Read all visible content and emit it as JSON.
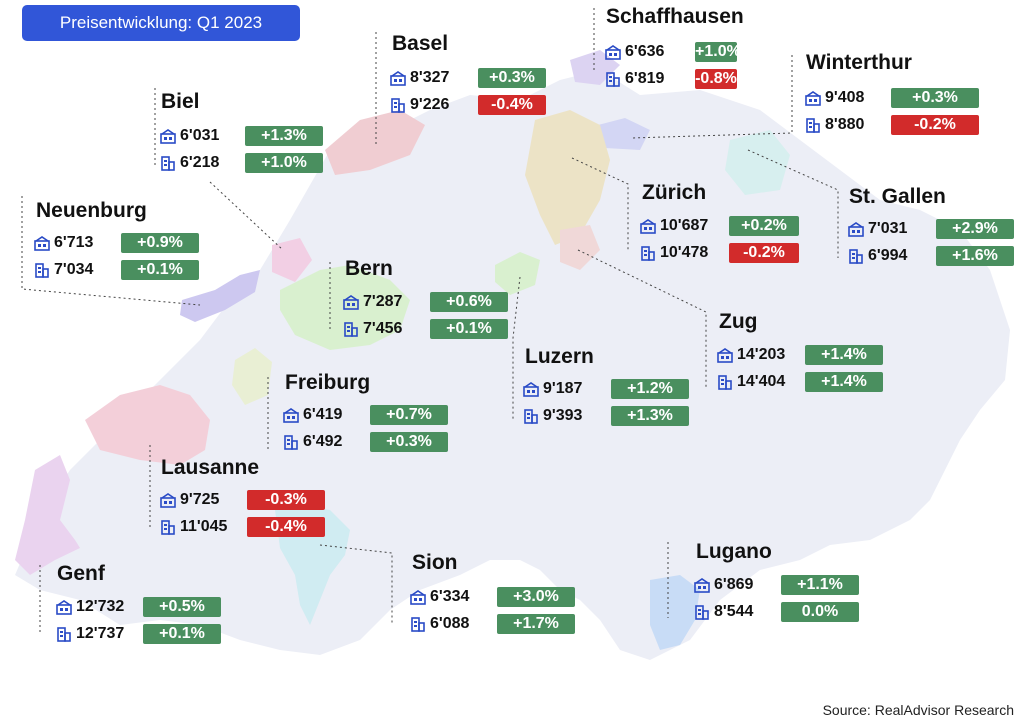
{
  "title": "Preisentwicklung: Q1 2023",
  "source": "Source: RealAdvisor Research",
  "icons": {
    "apartment": "apartment-icon",
    "house": "house-icon"
  },
  "colors": {
    "positive": "#4a8f5f",
    "negative": "#d22b2b",
    "title_bg": "#3156d8",
    "icon": "#2a4bc6"
  },
  "cities": [
    {
      "name": "Basel",
      "rows": [
        {
          "value": "8'327",
          "change": "+0.3%"
        },
        {
          "value": "9'226",
          "change": "-0.4%"
        }
      ]
    },
    {
      "name": "Schaffhausen",
      "rows": [
        {
          "value": "6'636",
          "change": "+1.0%"
        },
        {
          "value": "6'819",
          "change": "-0.8%"
        }
      ]
    },
    {
      "name": "Winterthur",
      "rows": [
        {
          "value": "9'408",
          "change": "+0.3%"
        },
        {
          "value": "8'880",
          "change": "-0.2%"
        }
      ]
    },
    {
      "name": "Biel",
      "rows": [
        {
          "value": "6'031",
          "change": "+1.3%"
        },
        {
          "value": "6'218",
          "change": "+1.0%"
        }
      ]
    },
    {
      "name": "Zürich",
      "rows": [
        {
          "value": "10'687",
          "change": "+0.2%"
        },
        {
          "value": "10'478",
          "change": "-0.2%"
        }
      ]
    },
    {
      "name": "St. Gallen",
      "rows": [
        {
          "value": "7'031",
          "change": "+2.9%"
        },
        {
          "value": "6'994",
          "change": "+1.6%"
        }
      ]
    },
    {
      "name": "Neuenburg",
      "rows": [
        {
          "value": "6'713",
          "change": "+0.9%"
        },
        {
          "value": "7'034",
          "change": "+0.1%"
        }
      ]
    },
    {
      "name": "Bern",
      "rows": [
        {
          "value": "7'287",
          "change": "+0.6%"
        },
        {
          "value": "7'456",
          "change": "+0.1%"
        }
      ]
    },
    {
      "name": "Zug",
      "rows": [
        {
          "value": "14'203",
          "change": "+1.4%"
        },
        {
          "value": "14'404",
          "change": "+1.4%"
        }
      ]
    },
    {
      "name": "Luzern",
      "rows": [
        {
          "value": "9'187",
          "change": "+1.2%"
        },
        {
          "value": "9'393",
          "change": "+1.3%"
        }
      ]
    },
    {
      "name": "Freiburg",
      "rows": [
        {
          "value": "6'419",
          "change": "+0.7%"
        },
        {
          "value": "6'492",
          "change": "+0.3%"
        }
      ]
    },
    {
      "name": "Lausanne",
      "rows": [
        {
          "value": "9'725",
          "change": "-0.3%"
        },
        {
          "value": "11'045",
          "change": "-0.4%"
        }
      ]
    },
    {
      "name": "Sion",
      "rows": [
        {
          "value": "6'334",
          "change": "+3.0%"
        },
        {
          "value": "6'088",
          "change": "+1.7%"
        }
      ]
    },
    {
      "name": "Lugano",
      "rows": [
        {
          "value": "6'869",
          "change": "+1.1%"
        },
        {
          "value": "8'544",
          "change": "0.0%"
        }
      ]
    },
    {
      "name": "Genf",
      "rows": [
        {
          "value": "12'732",
          "change": "+0.5%"
        },
        {
          "value": "12'737",
          "change": "+0.1%"
        }
      ]
    }
  ]
}
